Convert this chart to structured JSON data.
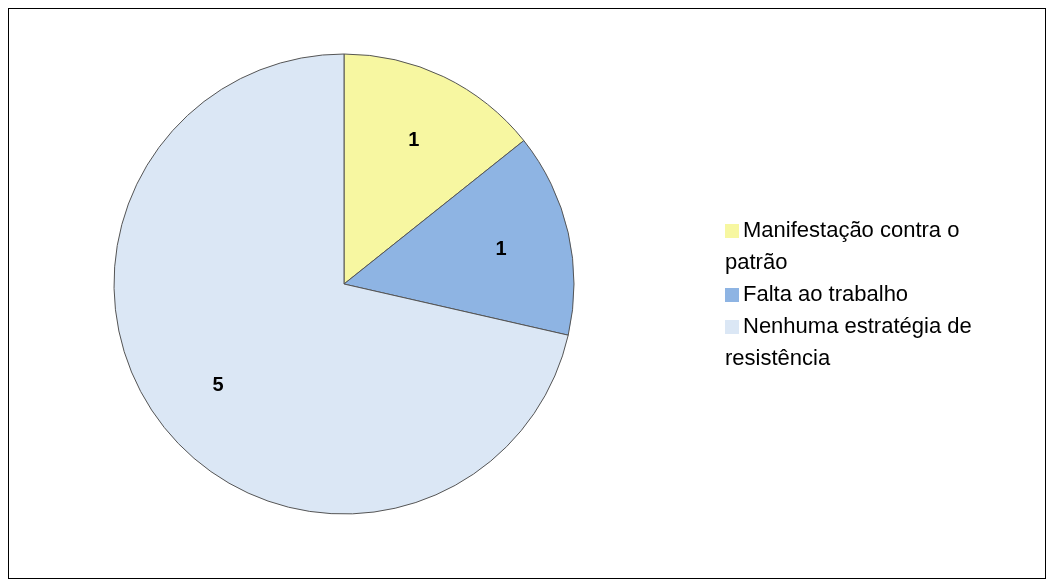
{
  "chart_data": {
    "type": "pie",
    "categories": [
      "Manifestação contra o patrão",
      "Falta ao trabalho",
      "Nenhuma estratégia de resistência"
    ],
    "values": [
      1,
      1,
      5
    ],
    "colors": [
      "#f7f7a1",
      "#8eb4e3",
      "#dbe7f5"
    ],
    "data_labels": true,
    "legend": "right"
  }
}
